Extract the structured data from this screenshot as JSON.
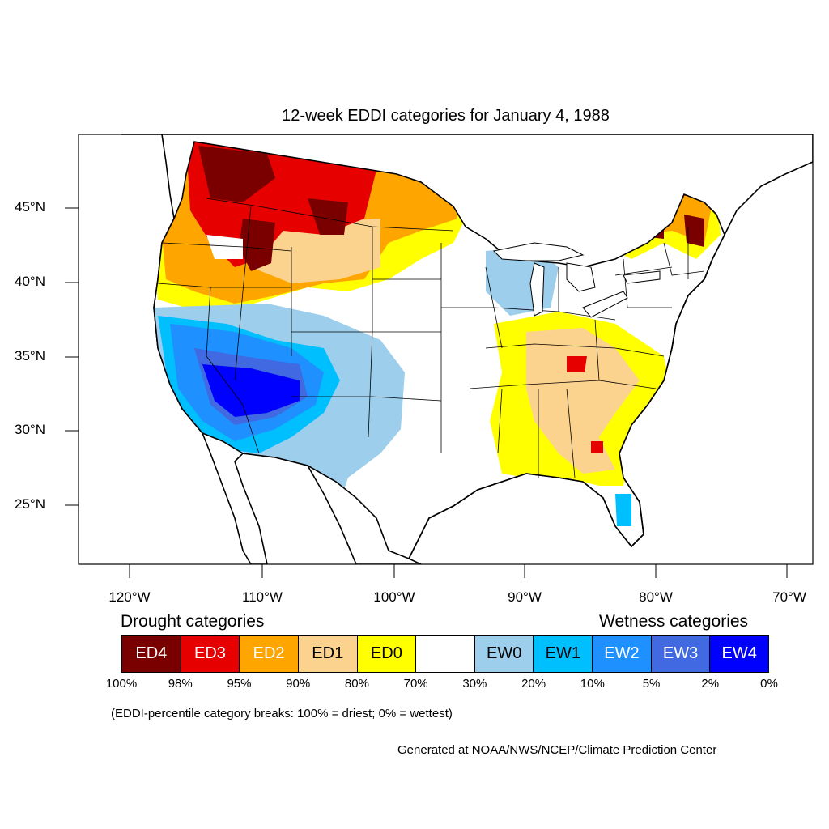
{
  "title": "12-week EDDI categories for January 4, 1988",
  "axes": {
    "lat_labels": [
      "45°N",
      "40°N",
      "35°N",
      "30°N",
      "25°N"
    ],
    "lon_labels": [
      "120°W",
      "110°W",
      "100°W",
      "90°W",
      "80°W",
      "70°W"
    ]
  },
  "legend": {
    "drought_label": "Drought categories",
    "wetness_label": "Wetness categories",
    "categories": [
      {
        "label": "ED4",
        "color": "#7a0000",
        "text_color": "#ffffff"
      },
      {
        "label": "ED3",
        "color": "#e60000",
        "text_color": "#ffffff"
      },
      {
        "label": "ED2",
        "color": "#ffa500",
        "text_color": "#ffffff"
      },
      {
        "label": "ED1",
        "color": "#fcd38e",
        "text_color": "#000000"
      },
      {
        "label": "ED0",
        "color": "#ffff00",
        "text_color": "#000000"
      },
      {
        "label": "",
        "color": "#ffffff",
        "text_color": "#000000"
      },
      {
        "label": "EW0",
        "color": "#9dcfec",
        "text_color": "#000000"
      },
      {
        "label": "EW1",
        "color": "#00bfff",
        "text_color": "#000000"
      },
      {
        "label": "EW2",
        "color": "#1e90ff",
        "text_color": "#ffffff"
      },
      {
        "label": "EW3",
        "color": "#4169e1",
        "text_color": "#ffffff"
      },
      {
        "label": "EW4",
        "color": "#0000ff",
        "text_color": "#ffffff"
      }
    ],
    "percentiles": [
      "100%",
      "98%",
      "95%",
      "90%",
      "80%",
      "70%",
      "30%",
      "20%",
      "10%",
      "5%",
      "2%",
      "0%"
    ]
  },
  "note": "(EDDI-percentile category breaks: 100% = driest; 0% = wettest)",
  "credit": "Generated at NOAA/NWS/NCEP/Climate Prediction Center"
}
